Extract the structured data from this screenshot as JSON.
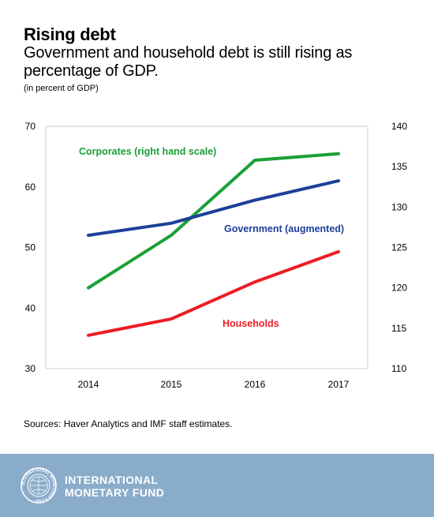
{
  "header": {
    "title": "Rising debt",
    "subtitle": "Government and household debt is still rising as percentage of GDP.",
    "units": "(in percent of GDP)"
  },
  "source": "Sources: Haver Analytics and IMF staff estimates.",
  "footer": {
    "org_line1": "INTERNATIONAL",
    "org_line2": "MONETARY FUND",
    "seal_text": "INTERNATIONAL MONETARY FUND",
    "background": "#8aaccb",
    "icon": "imf-seal-icon"
  },
  "chart_data": {
    "type": "line",
    "title": "Rising debt",
    "x": [
      "2014",
      "2015",
      "2016",
      "2017"
    ],
    "left_axis": {
      "ylim": [
        30,
        70
      ],
      "ticks": [
        30,
        40,
        50,
        60,
        70
      ]
    },
    "right_axis": {
      "ylim": [
        110,
        140
      ],
      "ticks": [
        110,
        115,
        120,
        125,
        130,
        135,
        140
      ]
    },
    "grid": false,
    "series": [
      {
        "name": "Corporates (right hand scale)",
        "axis": "right",
        "color": "#1aa036",
        "values": [
          120,
          126.5,
          135.8,
          136.6
        ]
      },
      {
        "name": "Government (augmented)",
        "axis": "left",
        "color": "#1d3f9a",
        "values": [
          52,
          54,
          57.8,
          61
        ]
      },
      {
        "name": "Households",
        "axis": "left",
        "color": "#ee1c25",
        "values": [
          35.5,
          38.2,
          44.3,
          49.3
        ]
      }
    ]
  }
}
